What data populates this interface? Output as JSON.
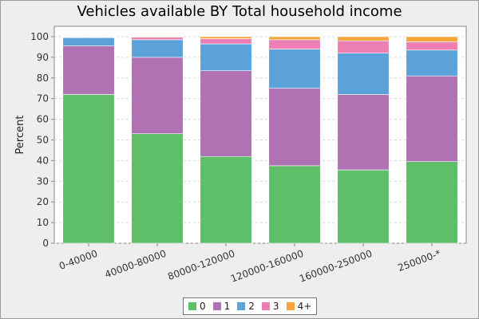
{
  "chart_data": {
    "type": "bar",
    "stacked": true,
    "title": "Vehicles available BY Total household income",
    "xlabel": "",
    "ylabel": "Percent",
    "ylim": [
      0,
      105
    ],
    "yticks": [
      0,
      10,
      20,
      30,
      40,
      50,
      60,
      70,
      80,
      90,
      100
    ],
    "grid": true,
    "legend_position": "bottom",
    "categories": [
      "0-40000",
      "40000-80000",
      "80000-120000",
      "120000-160000",
      "160000-250000",
      "250000-*"
    ],
    "series": [
      {
        "name": "0",
        "color": "#5fbe68",
        "values": [
          72,
          53,
          42,
          37.5,
          35.5,
          39.5
        ]
      },
      {
        "name": "1",
        "color": "#b072b3",
        "values": [
          23.5,
          37,
          41.5,
          37.5,
          36.5,
          41.5
        ]
      },
      {
        "name": "2",
        "color": "#5aa2d9",
        "values": [
          4,
          8.5,
          13,
          19,
          20,
          12.5
        ]
      },
      {
        "name": "3",
        "color": "#ee7fb4",
        "values": [
          0.3,
          1.2,
          2.5,
          4.5,
          6,
          4
        ]
      },
      {
        "name": "4+",
        "color": "#f4a63a",
        "values": [
          0.2,
          0.3,
          1,
          1.5,
          2,
          2.5
        ]
      }
    ]
  }
}
